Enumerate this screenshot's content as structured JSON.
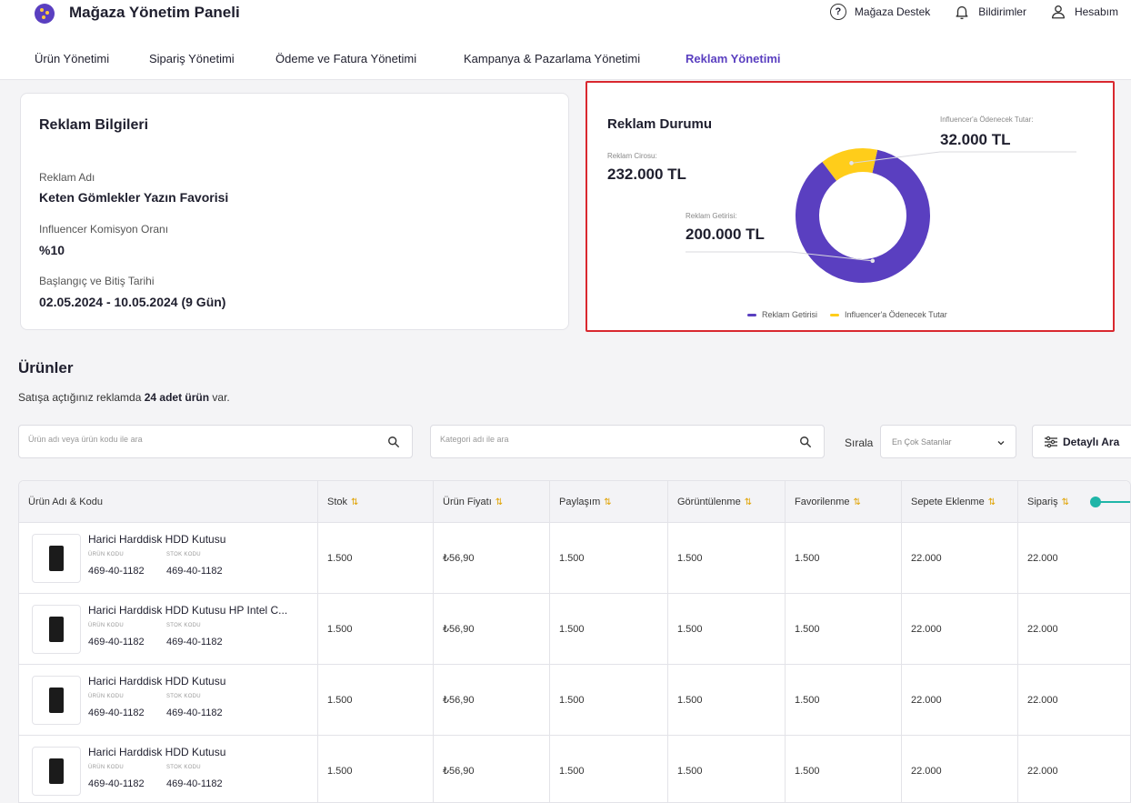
{
  "app": {
    "title": "Mağaza Yönetim Paneli",
    "top_links": [
      "Mağaza Destek",
      "Bildirimler",
      "Hesabım"
    ]
  },
  "nav": {
    "tabs": [
      "Ürün Yönetimi",
      "Sipariş Yönetimi",
      "Ödeme ve Fatura Yönetimi",
      "Kampanya & Pazarlama Yönetimi",
      "Reklam Yönetimi"
    ],
    "active": "Reklam Yönetimi"
  },
  "info": {
    "title": "Reklam Bilgileri",
    "ad_name_label": "Reklam Adı",
    "ad_name": "Keten Gömlekler Yazın Favorisi",
    "commission_label": "Influencer Komisyon Oranı",
    "commission": "%10",
    "date_label": "Başlangıç ve Bitiş Tarihi",
    "date": "02.05.2024 - 10.05.2024 (9 Gün)"
  },
  "status": {
    "title": "Reklam Durumu",
    "revenue_label": "Reklam Cirosu:",
    "revenue": "232.000 TL",
    "return_label": "Reklam Getirisi:",
    "return_value": "200.000 TL",
    "influencer_label": "Influencer'a Ödenecek Tutar:",
    "influencer_value": "32.000 TL",
    "legend": [
      "Reklam Getirisi",
      "Influencer'a Ödenecek Tutar"
    ]
  },
  "chart_data": {
    "type": "pie",
    "categories": [
      "Reklam Getirisi",
      "Influencer'a Ödenecek Tutar"
    ],
    "values": [
      200000,
      32000
    ],
    "colors": [
      "#5a3fc0",
      "#ffcd1a"
    ],
    "title": "Reklam Durumu",
    "legend_position": "bottom"
  },
  "products": {
    "title": "Ürünler",
    "subtitle_pre": "Satışa açtığınız reklamda ",
    "subtitle_bold": "24 adet ürün",
    "subtitle_post": " var.",
    "search_placeholder": "Ürün adı veya ürün kodu ile ara",
    "category_placeholder": "Kategori adı ile ara",
    "sort_label": "Sırala",
    "sort_value": "En Çok Satanlar",
    "detail_button": "Detaylı Ara"
  },
  "table": {
    "columns": [
      "Ürün Adı & Kodu",
      "Stok",
      "Ürün Fiyatı",
      "Paylaşım",
      "Görüntülenme",
      "Favorilenme",
      "Sepete Eklenme",
      "Sipariş"
    ],
    "code_caption": "ÜRÜN KODU",
    "stock_caption": "STOK KODU",
    "rows": [
      {
        "name": "Harici Harddisk HDD Kutusu",
        "product_code": "469-40-1182",
        "stock_code": "469-40-1182",
        "stok": "1.500",
        "price": "₺56,90",
        "share": "1.500",
        "views": "1.500",
        "favs": "1.500",
        "cart": "22.000",
        "orders": "22.000"
      },
      {
        "name": "Harici Harddisk HDD Kutusu HP Intel C...",
        "product_code": "469-40-1182",
        "stock_code": "469-40-1182",
        "stok": "1.500",
        "price": "₺56,90",
        "share": "1.500",
        "views": "1.500",
        "favs": "1.500",
        "cart": "22.000",
        "orders": "22.000"
      },
      {
        "name": "Harici Harddisk HDD Kutusu",
        "product_code": "469-40-1182",
        "stock_code": "469-40-1182",
        "stok": "1.500",
        "price": "₺56,90",
        "share": "1.500",
        "views": "1.500",
        "favs": "1.500",
        "cart": "22.000",
        "orders": "22.000"
      },
      {
        "name": "Harici Harddisk HDD Kutusu",
        "product_code": "469-40-1182",
        "stock_code": "469-40-1182",
        "stok": "1.500",
        "price": "₺56,90",
        "share": "1.500",
        "views": "1.500",
        "favs": "1.500",
        "cart": "22.000",
        "orders": "22.000"
      }
    ]
  },
  "icons": {
    "logo": "store-logo-icon",
    "help": "question-circle-icon",
    "bell": "bell-icon",
    "user": "user-icon",
    "search": "search-icon",
    "filter": "sliders-icon",
    "sort": "sort-arrows-icon"
  }
}
